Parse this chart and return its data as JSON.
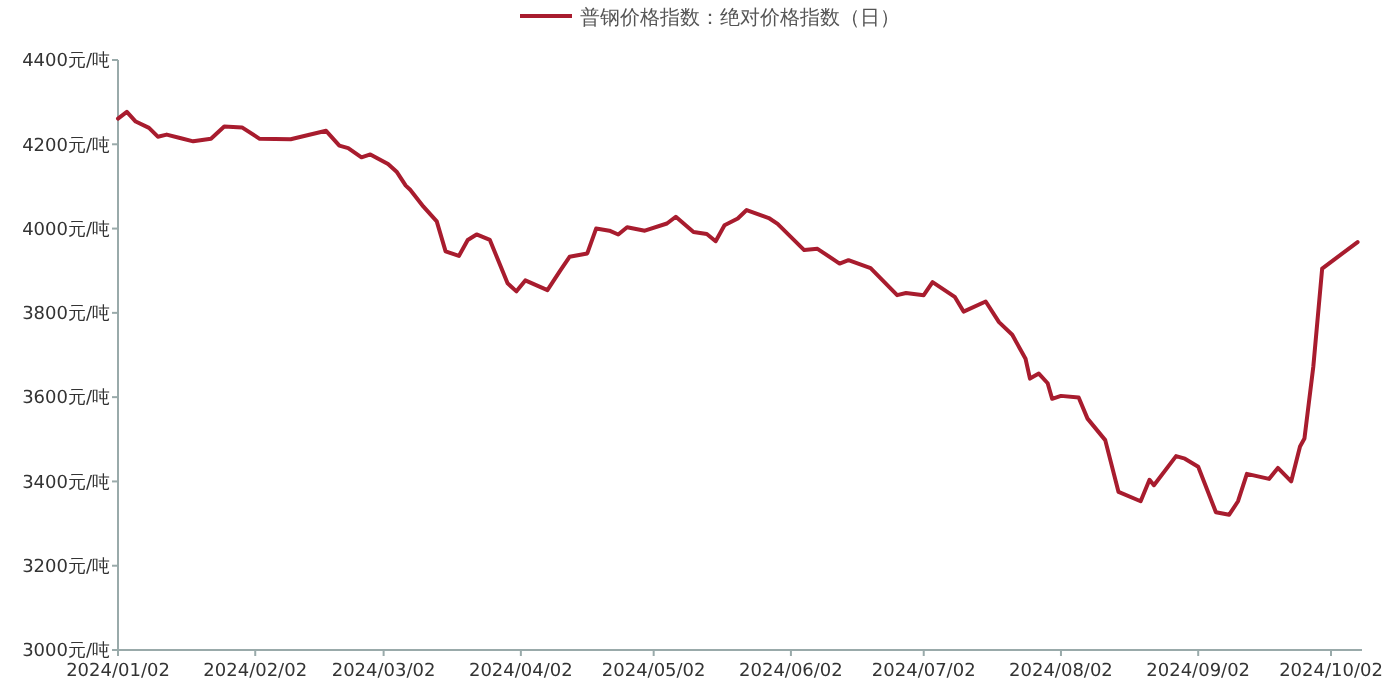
{
  "chart_data": {
    "type": "line",
    "x": [
      "2024-01-02",
      "2024-01-04",
      "2024-01-06",
      "2024-01-09",
      "2024-01-11",
      "2024-01-13",
      "2024-01-16",
      "2024-01-19",
      "2024-01-23",
      "2024-01-26",
      "2024-01-30",
      "2024-02-03",
      "2024-02-10",
      "2024-02-18",
      "2024-02-21",
      "2024-02-23",
      "2024-02-26",
      "2024-02-28",
      "2024-03-03",
      "2024-03-05",
      "2024-03-07",
      "2024-03-08",
      "2024-03-11",
      "2024-03-14",
      "2024-03-16",
      "2024-03-19",
      "2024-03-21",
      "2024-03-23",
      "2024-03-26",
      "2024-03-30",
      "2024-04-01",
      "2024-04-03",
      "2024-04-08",
      "2024-04-11",
      "2024-04-13",
      "2024-04-17",
      "2024-04-19",
      "2024-04-22",
      "2024-04-24",
      "2024-04-26",
      "2024-04-30",
      "2024-05-05",
      "2024-05-07",
      "2024-05-11",
      "2024-05-14",
      "2024-05-16",
      "2024-05-18",
      "2024-05-21",
      "2024-05-23",
      "2024-05-28",
      "2024-05-30",
      "2024-06-05",
      "2024-06-08",
      "2024-06-13",
      "2024-06-15",
      "2024-06-20",
      "2024-06-26",
      "2024-06-28",
      "2024-07-02",
      "2024-07-04",
      "2024-07-09",
      "2024-07-11",
      "2024-07-16",
      "2024-07-19",
      "2024-07-22",
      "2024-07-25",
      "2024-07-26",
      "2024-07-28",
      "2024-07-30",
      "2024-07-31",
      "2024-08-02",
      "2024-08-06",
      "2024-08-08",
      "2024-08-12",
      "2024-08-15",
      "2024-08-20",
      "2024-08-22",
      "2024-08-23",
      "2024-08-28",
      "2024-08-30",
      "2024-09-02",
      "2024-09-06",
      "2024-09-09",
      "2024-09-11",
      "2024-09-13",
      "2024-09-18",
      "2024-09-20",
      "2024-09-23",
      "2024-09-25",
      "2024-09-26",
      "2024-09-28",
      "2024-09-30",
      "2024-10-08"
    ],
    "series": [
      {
        "name": "普钢价格指数：绝对价格指数（日）",
        "color": "#a81c2e",
        "values": [
          4261,
          4277,
          4254,
          4239,
          4218,
          4223,
          4215,
          4207,
          4213,
          4242,
          4240,
          4213,
          4212,
          4232,
          4197,
          4191,
          4169,
          4176,
          4153,
          4134,
          4102,
          4092,
          4052,
          4017,
          3946,
          3935,
          3973,
          3986,
          3973,
          3870,
          3851,
          3877,
          3854,
          3902,
          3933,
          3941,
          4000,
          3995,
          3986,
          4003,
          3995,
          4012,
          4028,
          3992,
          3987,
          3970,
          4008,
          4024,
          4044,
          4025,
          4011,
          3949,
          3952,
          3917,
          3925,
          3906,
          3842,
          3847,
          3842,
          3873,
          3838,
          3803,
          3827,
          3778,
          3748,
          3691,
          3644,
          3656,
          3633,
          3596,
          3603,
          3599,
          3549,
          3498,
          3375,
          3353,
          3404,
          3391,
          3460,
          3454,
          3435,
          3327,
          3321,
          3353,
          3418,
          3406,
          3432,
          3400,
          3483,
          3502,
          3672,
          3905,
          3968
        ]
      }
    ],
    "xlim": [
      "2024-01-02",
      "2024-10-09"
    ],
    "xticks": [
      {
        "value": "2024-01-02",
        "label": "2024/01/02"
      },
      {
        "value": "2024-02-02",
        "label": "2024/02/02"
      },
      {
        "value": "2024-03-02",
        "label": "2024/03/02"
      },
      {
        "value": "2024-04-02",
        "label": "2024/04/02"
      },
      {
        "value": "2024-05-02",
        "label": "2024/05/02"
      },
      {
        "value": "2024-06-02",
        "label": "2024/06/02"
      },
      {
        "value": "2024-07-02",
        "label": "2024/07/02"
      },
      {
        "value": "2024-08-02",
        "label": "2024/08/02"
      },
      {
        "value": "2024-09-02",
        "label": "2024/09/02"
      },
      {
        "value": "2024-10-02",
        "label": "2024/10/02"
      }
    ],
    "ylim": [
      3000,
      4400
    ],
    "yticks": [
      {
        "value": 3000,
        "label": "3000元/吨"
      },
      {
        "value": 3200,
        "label": "3200元/吨"
      },
      {
        "value": 3400,
        "label": "3400元/吨"
      },
      {
        "value": 3600,
        "label": "3600元/吨"
      },
      {
        "value": 3800,
        "label": "3800元/吨"
      },
      {
        "value": 4000,
        "label": "4000元/吨"
      },
      {
        "value": 4200,
        "label": "4200元/吨"
      },
      {
        "value": 4400,
        "label": "4400元/吨"
      }
    ],
    "grid": false,
    "legend": "top right",
    "marker": "none",
    "line_style": "solid"
  }
}
